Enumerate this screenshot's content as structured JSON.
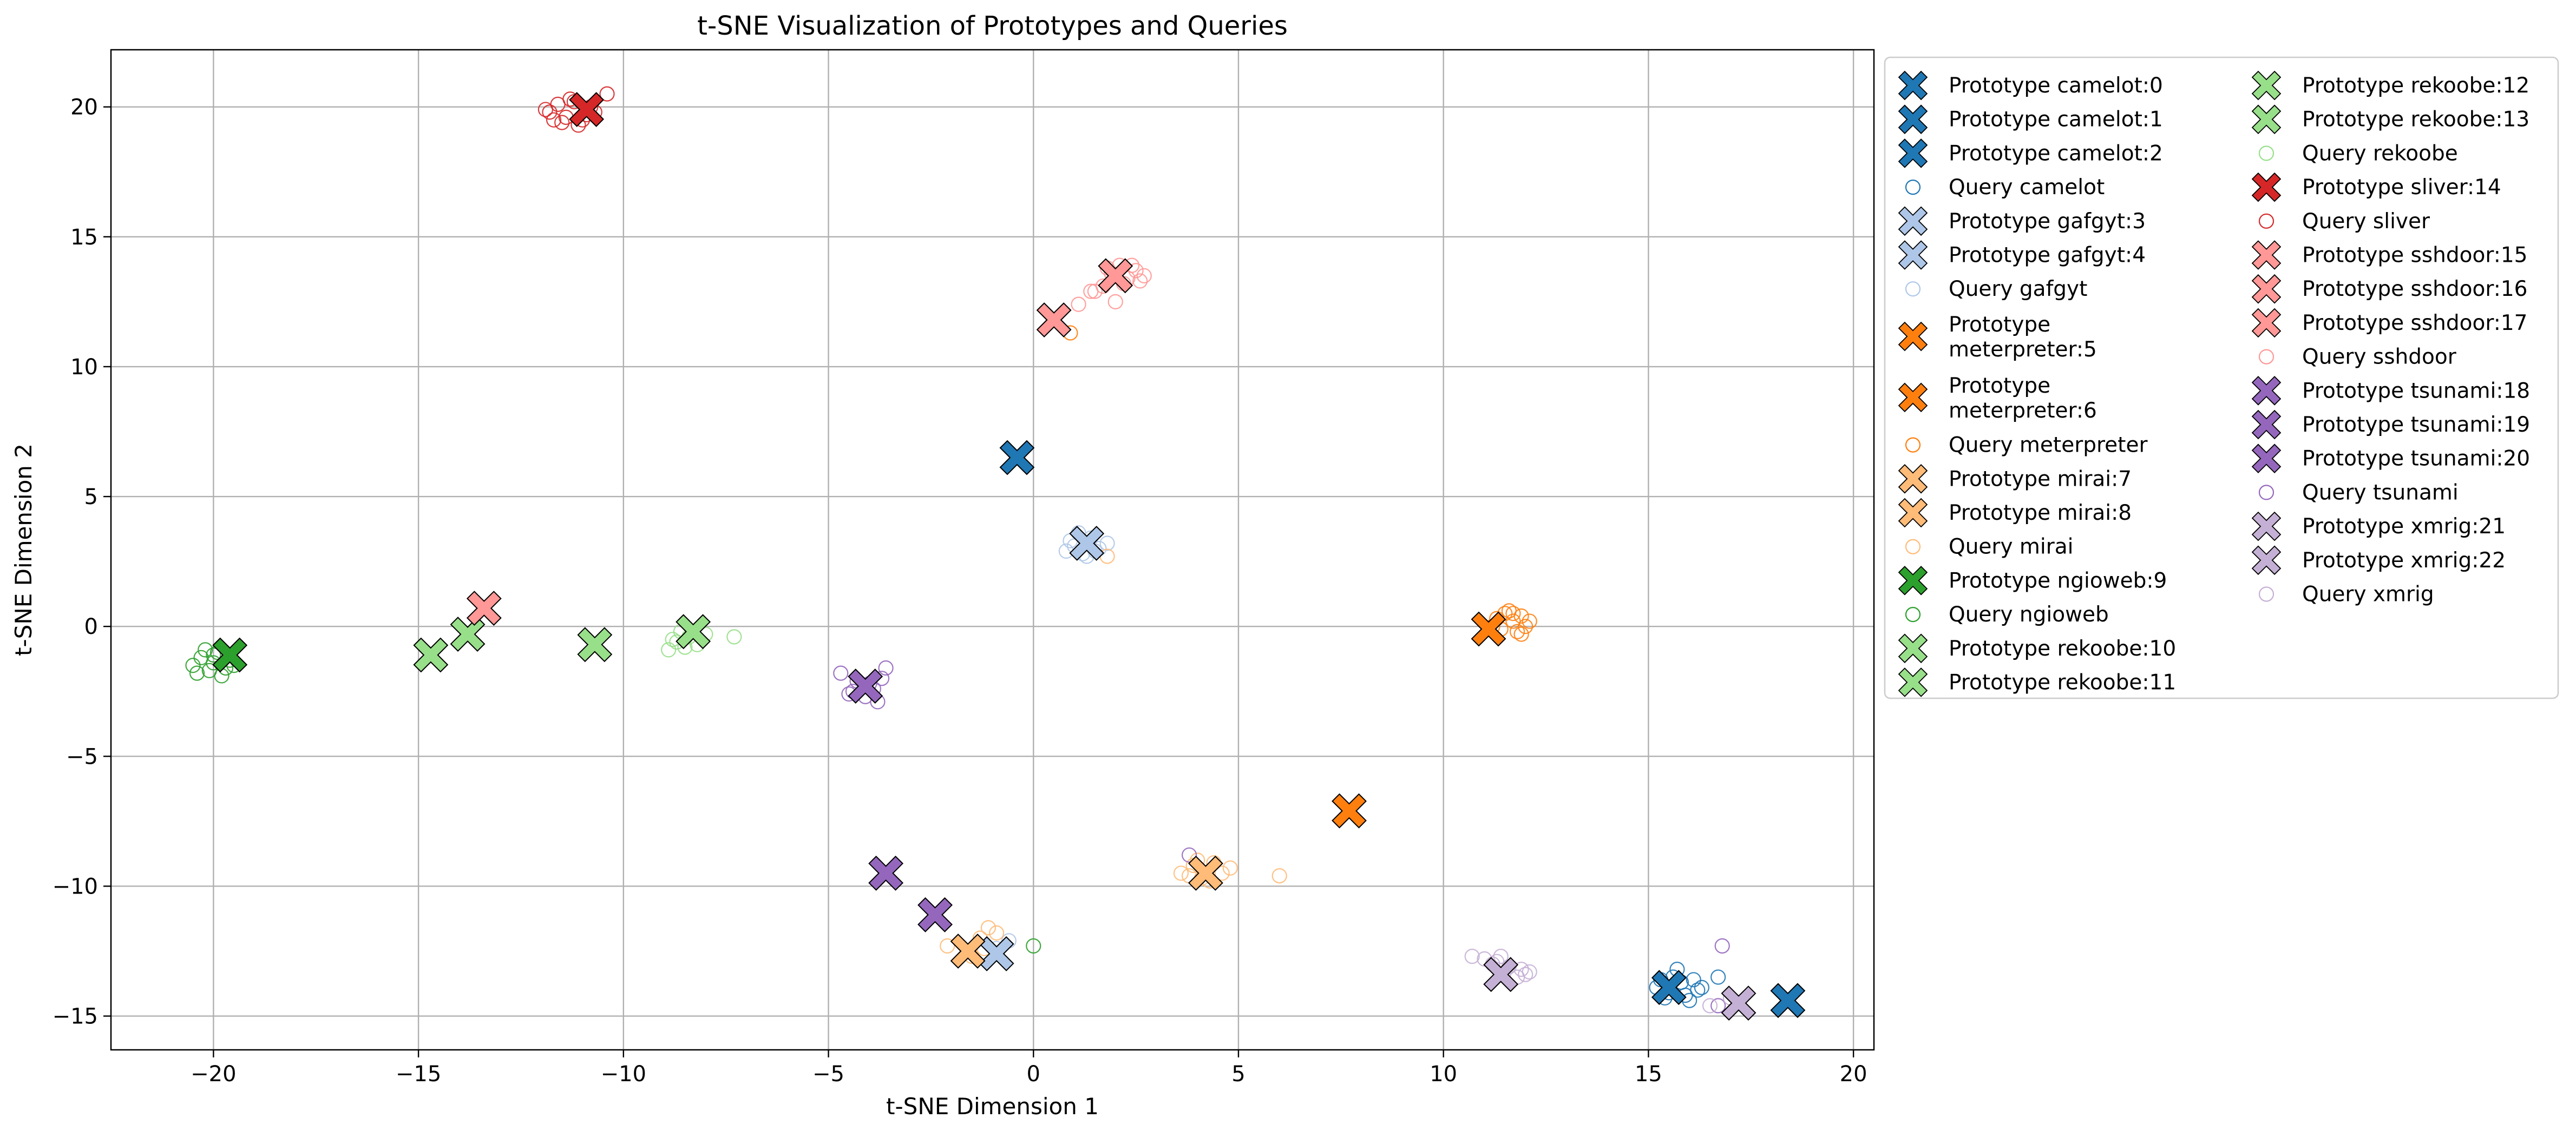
{
  "chart_data": {
    "type": "scatter",
    "title": "t-SNE Visualization of Prototypes and Queries",
    "xlabel": "t-SNE Dimension 1",
    "ylabel": "t-SNE Dimension 2",
    "xlim": [
      -22.5,
      20.5
    ],
    "ylim": [
      -16.3,
      22.2
    ],
    "xticks": [
      -20,
      -15,
      -10,
      -5,
      0,
      5,
      10,
      15,
      20
    ],
    "yticks": [
      -15,
      -10,
      -5,
      0,
      5,
      10,
      15,
      20
    ],
    "xtick_labels": [
      "−20",
      "−15",
      "−10",
      "−5",
      "0",
      "5",
      "10",
      "15",
      "20"
    ],
    "ytick_labels": [
      "−15",
      "−10",
      "−5",
      "0",
      "5",
      "10",
      "15",
      "20"
    ],
    "grid": true,
    "legend_position": "outside-right",
    "legend_columns": 2,
    "colors": {
      "camelot": "#1f77b4",
      "gafgyt": "#aec7e8",
      "meterpreter": "#ff7f0e",
      "mirai": "#ffbb78",
      "ngioweb": "#2ca02c",
      "rekoobe": "#98df8a",
      "sliver": "#d62728",
      "sshdoor": "#ff9896",
      "tsunami": "#9467bd",
      "xmrig": "#c5b0d5"
    },
    "legend": [
      {
        "label": "Prototype camelot:0",
        "kind": "prototype",
        "family": "camelot"
      },
      {
        "label": "Prototype camelot:1",
        "kind": "prototype",
        "family": "camelot"
      },
      {
        "label": "Prototype camelot:2",
        "kind": "prototype",
        "family": "camelot"
      },
      {
        "label": "Query camelot",
        "kind": "query",
        "family": "camelot"
      },
      {
        "label": "Prototype gafgyt:3",
        "kind": "prototype",
        "family": "gafgyt"
      },
      {
        "label": "Prototype gafgyt:4",
        "kind": "prototype",
        "family": "gafgyt"
      },
      {
        "label": "Query gafgyt",
        "kind": "query",
        "family": "gafgyt"
      },
      {
        "label": "Prototype\nmeterpreter:5",
        "kind": "prototype",
        "family": "meterpreter"
      },
      {
        "label": "Prototype\nmeterpreter:6",
        "kind": "prototype",
        "family": "meterpreter"
      },
      {
        "label": "Query meterpreter",
        "kind": "query",
        "family": "meterpreter"
      },
      {
        "label": "Prototype mirai:7",
        "kind": "prototype",
        "family": "mirai"
      },
      {
        "label": "Prototype mirai:8",
        "kind": "prototype",
        "family": "mirai"
      },
      {
        "label": "Query mirai",
        "kind": "query",
        "family": "mirai"
      },
      {
        "label": "Prototype ngioweb:9",
        "kind": "prototype",
        "family": "ngioweb"
      },
      {
        "label": "Query ngioweb",
        "kind": "query",
        "family": "ngioweb"
      },
      {
        "label": "Prototype rekoobe:10",
        "kind": "prototype",
        "family": "rekoobe"
      },
      {
        "label": "Prototype rekoobe:11",
        "kind": "prototype",
        "family": "rekoobe"
      },
      {
        "label": "Prototype rekoobe:12",
        "kind": "prototype",
        "family": "rekoobe"
      },
      {
        "label": "Prototype rekoobe:13",
        "kind": "prototype",
        "family": "rekoobe"
      },
      {
        "label": "Query rekoobe",
        "kind": "query",
        "family": "rekoobe"
      },
      {
        "label": "Prototype sliver:14",
        "kind": "prototype",
        "family": "sliver"
      },
      {
        "label": "Query sliver",
        "kind": "query",
        "family": "sliver"
      },
      {
        "label": "Prototype sshdoor:15",
        "kind": "prototype",
        "family": "sshdoor"
      },
      {
        "label": "Prototype sshdoor:16",
        "kind": "prototype",
        "family": "sshdoor"
      },
      {
        "label": "Prototype sshdoor:17",
        "kind": "prototype",
        "family": "sshdoor"
      },
      {
        "label": "Query sshdoor",
        "kind": "query",
        "family": "sshdoor"
      },
      {
        "label": "Prototype tsunami:18",
        "kind": "prototype",
        "family": "tsunami"
      },
      {
        "label": "Prototype tsunami:19",
        "kind": "prototype",
        "family": "tsunami"
      },
      {
        "label": "Prototype tsunami:20",
        "kind": "prototype",
        "family": "tsunami"
      },
      {
        "label": "Query tsunami",
        "kind": "query",
        "family": "tsunami"
      },
      {
        "label": "Prototype xmrig:21",
        "kind": "prototype",
        "family": "xmrig"
      },
      {
        "label": "Prototype xmrig:22",
        "kind": "prototype",
        "family": "xmrig"
      },
      {
        "label": "Query xmrig",
        "kind": "query",
        "family": "xmrig"
      }
    ],
    "prototypes": [
      {
        "family": "camelot",
        "id": 0,
        "x": -0.4,
        "y": 6.5
      },
      {
        "family": "camelot",
        "id": 1,
        "x": 15.5,
        "y": -13.9
      },
      {
        "family": "camelot",
        "id": 2,
        "x": 18.4,
        "y": -14.4
      },
      {
        "family": "gafgyt",
        "id": 3,
        "x": 1.3,
        "y": 3.2
      },
      {
        "family": "gafgyt",
        "id": 4,
        "x": -0.9,
        "y": -12.6
      },
      {
        "family": "meterpreter",
        "id": 5,
        "x": 11.1,
        "y": -0.1
      },
      {
        "family": "meterpreter",
        "id": 6,
        "x": 7.7,
        "y": -7.1
      },
      {
        "family": "mirai",
        "id": 7,
        "x": 4.2,
        "y": -9.5
      },
      {
        "family": "mirai",
        "id": 8,
        "x": -1.6,
        "y": -12.5
      },
      {
        "family": "ngioweb",
        "id": 9,
        "x": -19.6,
        "y": -1.1
      },
      {
        "family": "rekoobe",
        "id": 10,
        "x": -14.7,
        "y": -1.1
      },
      {
        "family": "rekoobe",
        "id": 11,
        "x": -13.8,
        "y": -0.3
      },
      {
        "family": "rekoobe",
        "id": 12,
        "x": -10.7,
        "y": -0.7
      },
      {
        "family": "rekoobe",
        "id": 13,
        "x": -8.3,
        "y": -0.2
      },
      {
        "family": "sliver",
        "id": 14,
        "x": -10.9,
        "y": 19.9
      },
      {
        "family": "sshdoor",
        "id": 15,
        "x": 0.5,
        "y": 11.8
      },
      {
        "family": "sshdoor",
        "id": 16,
        "x": 2.0,
        "y": 13.5
      },
      {
        "family": "sshdoor",
        "id": 17,
        "x": -13.4,
        "y": 0.7
      },
      {
        "family": "tsunami",
        "id": 18,
        "x": -4.1,
        "y": -2.3
      },
      {
        "family": "tsunami",
        "id": 19,
        "x": -3.6,
        "y": -9.5
      },
      {
        "family": "tsunami",
        "id": 20,
        "x": -2.4,
        "y": -11.1
      },
      {
        "family": "xmrig",
        "id": 21,
        "x": 11.4,
        "y": -13.4
      },
      {
        "family": "xmrig",
        "id": 22,
        "x": 17.2,
        "y": -14.5
      }
    ],
    "queries": [
      {
        "family": "camelot",
        "points": [
          [
            15.2,
            -13.9
          ],
          [
            15.5,
            -14.1
          ],
          [
            15.8,
            -13.7
          ],
          [
            15.9,
            -14.2
          ],
          [
            16.1,
            -13.6
          ],
          [
            15.7,
            -13.2
          ],
          [
            16.3,
            -13.9
          ],
          [
            15.4,
            -14.3
          ],
          [
            16.0,
            -14.4
          ],
          [
            15.6,
            -13.5
          ],
          [
            16.2,
            -14.0
          ],
          [
            16.7,
            -13.5
          ],
          [
            15.3,
            -13.6
          ]
        ]
      },
      {
        "family": "gafgyt",
        "points": [
          [
            0.8,
            2.9
          ],
          [
            1.0,
            3.1
          ],
          [
            1.2,
            2.8
          ],
          [
            1.4,
            3.4
          ],
          [
            1.6,
            3.0
          ],
          [
            0.9,
            3.3
          ],
          [
            1.1,
            3.6
          ],
          [
            1.5,
            2.9
          ],
          [
            1.8,
            3.2
          ],
          [
            1.3,
            2.7
          ],
          [
            -0.9,
            -12.4
          ],
          [
            -0.6,
            -12.1
          ]
        ]
      },
      {
        "family": "meterpreter",
        "points": [
          [
            11.3,
            0.3
          ],
          [
            11.5,
            0.5
          ],
          [
            11.7,
            0.2
          ],
          [
            11.9,
            0.4
          ],
          [
            12.0,
            0.0
          ],
          [
            11.8,
            -0.2
          ],
          [
            11.6,
            0.6
          ],
          [
            11.4,
            -0.1
          ],
          [
            12.1,
            0.2
          ],
          [
            11.2,
            0.0
          ],
          [
            11.9,
            -0.3
          ],
          [
            11.7,
            0.5
          ],
          [
            0.9,
            11.3
          ]
        ]
      },
      {
        "family": "mirai",
        "points": [
          [
            3.6,
            -9.5
          ],
          [
            3.9,
            -9.2
          ],
          [
            4.1,
            -9.7
          ],
          [
            4.4,
            -9.1
          ],
          [
            4.6,
            -9.5
          ],
          [
            4.8,
            -9.3
          ],
          [
            4.0,
            -9.0
          ],
          [
            4.3,
            -9.8
          ],
          [
            3.8,
            -9.6
          ],
          [
            6.0,
            -9.6
          ],
          [
            -1.1,
            -11.6
          ],
          [
            -1.3,
            -12.0
          ],
          [
            -1.5,
            -12.7
          ],
          [
            -0.9,
            -11.8
          ],
          [
            -1.2,
            -12.4
          ],
          [
            -2.1,
            -12.3
          ],
          [
            1.8,
            2.7
          ]
        ]
      },
      {
        "family": "ngioweb",
        "points": [
          [
            -20.5,
            -1.5
          ],
          [
            -20.3,
            -1.2
          ],
          [
            -20.1,
            -1.7
          ],
          [
            -19.9,
            -1.0
          ],
          [
            -20.0,
            -1.4
          ],
          [
            -19.7,
            -1.6
          ],
          [
            -20.2,
            -0.9
          ],
          [
            -19.6,
            -1.3
          ],
          [
            -20.4,
            -1.8
          ],
          [
            -19.8,
            -1.9
          ],
          [
            -20.0,
            -1.1
          ],
          [
            -19.5,
            -1.5
          ],
          [
            0.0,
            -12.3
          ]
        ]
      },
      {
        "family": "rekoobe",
        "points": [
          [
            -8.9,
            -0.9
          ],
          [
            -8.7,
            -0.6
          ],
          [
            -8.5,
            -0.8
          ],
          [
            -8.4,
            -0.4
          ],
          [
            -8.2,
            -0.7
          ],
          [
            -8.0,
            -0.3
          ],
          [
            -8.6,
            -0.2
          ],
          [
            -7.3,
            -0.4
          ],
          [
            -8.8,
            -0.5
          ]
        ]
      },
      {
        "family": "sliver",
        "points": [
          [
            -11.8,
            19.8
          ],
          [
            -11.6,
            20.1
          ],
          [
            -11.4,
            19.6
          ],
          [
            -11.2,
            20.2
          ],
          [
            -11.0,
            19.5
          ],
          [
            -10.8,
            20.0
          ],
          [
            -11.5,
            19.4
          ],
          [
            -11.7,
            19.5
          ],
          [
            -11.3,
            20.3
          ],
          [
            -10.9,
            19.7
          ],
          [
            -11.1,
            19.3
          ],
          [
            -10.4,
            20.5
          ],
          [
            -11.9,
            19.9
          ],
          [
            -10.7,
            19.8
          ]
        ]
      },
      {
        "family": "sshdoor",
        "points": [
          [
            1.5,
            12.9
          ],
          [
            1.7,
            13.1
          ],
          [
            1.9,
            13.6
          ],
          [
            2.1,
            13.9
          ],
          [
            2.3,
            13.4
          ],
          [
            2.5,
            13.7
          ],
          [
            2.7,
            13.5
          ],
          [
            2.2,
            13.2
          ],
          [
            1.8,
            13.8
          ],
          [
            2.4,
            13.9
          ],
          [
            2.6,
            13.3
          ],
          [
            2.0,
            12.5
          ],
          [
            1.1,
            12.4
          ],
          [
            1.4,
            12.9
          ]
        ]
      },
      {
        "family": "tsunami",
        "points": [
          [
            -4.7,
            -1.8
          ],
          [
            -4.5,
            -2.6
          ],
          [
            -4.3,
            -2.1
          ],
          [
            -4.1,
            -2.7
          ],
          [
            -3.9,
            -2.4
          ],
          [
            -3.8,
            -2.9
          ],
          [
            -3.6,
            -1.6
          ],
          [
            -4.4,
            -2.5
          ],
          [
            -4.0,
            -2.2
          ],
          [
            -3.7,
            -2.0
          ],
          [
            3.8,
            -8.8
          ],
          [
            16.8,
            -12.3
          ],
          [
            16.7,
            -14.6
          ]
        ]
      },
      {
        "family": "xmrig",
        "points": [
          [
            10.7,
            -12.7
          ],
          [
            11.0,
            -12.8
          ],
          [
            11.3,
            -12.9
          ],
          [
            11.6,
            -13.1
          ],
          [
            11.9,
            -13.2
          ],
          [
            12.1,
            -13.3
          ],
          [
            11.4,
            -12.7
          ],
          [
            11.8,
            -13.5
          ],
          [
            11.2,
            -13.0
          ],
          [
            12.0,
            -13.4
          ],
          [
            16.5,
            -14.6
          ],
          [
            17.0,
            -14.3
          ]
        ]
      }
    ]
  }
}
